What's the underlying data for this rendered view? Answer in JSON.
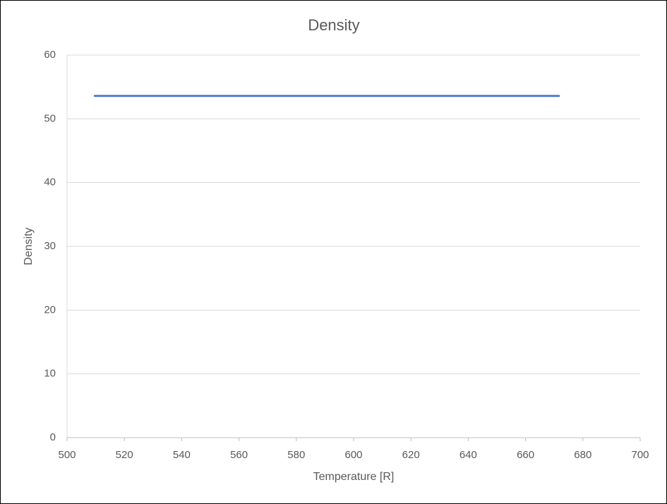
{
  "chart_data": {
    "type": "line",
    "title": "Density",
    "x_label": "Temperature [R]",
    "y_label": "Density",
    "x": [
      509.67,
      671.67
    ],
    "values": [
      53.6,
      53.6
    ],
    "color": "#4472c4",
    "xlim": [
      500,
      700
    ],
    "xticks": [
      500,
      520,
      540,
      560,
      580,
      600,
      620,
      640,
      660,
      680,
      700
    ],
    "ylim": [
      0,
      60
    ],
    "yticks": [
      0,
      10,
      20,
      30,
      40,
      50,
      60
    ],
    "grid": true
  }
}
